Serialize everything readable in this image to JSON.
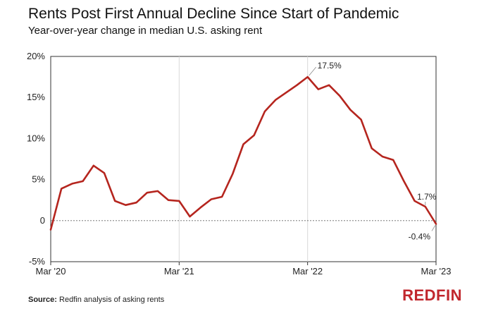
{
  "header": {
    "title": "Rents Post First Annual Decline Since Start of Pandemic",
    "subtitle": "Year-over-year change in median U.S. asking rent"
  },
  "footer": {
    "source_label": "Source:",
    "source_text": " Redfin analysis of asking rents",
    "brand": "REDFIN"
  },
  "colors": {
    "line": "#b5251e",
    "grid": "#d9d9d9",
    "zero_line": "#666666"
  },
  "chart_data": {
    "type": "line",
    "title": "Rents Post First Annual Decline Since Start of Pandemic",
    "subtitle": "Year-over-year change in median U.S. asking rent",
    "xlabel": "",
    "ylabel": "",
    "ylim": [
      -5,
      20
    ],
    "yticks": [
      -5,
      0,
      5,
      10,
      15,
      20
    ],
    "ytick_labels": [
      "-5%",
      "0",
      "5%",
      "10%",
      "15%",
      "20%"
    ],
    "xtick_labels": [
      "Mar '20",
      "Mar '21",
      "Mar '22",
      "Mar '23"
    ],
    "grid": "vertical at x ticks",
    "series": [
      {
        "values": [
          -1.1,
          3.9,
          4.5,
          4.8,
          6.7,
          5.8,
          2.4,
          1.9,
          2.2,
          3.4,
          3.6,
          2.5,
          2.4,
          0.5,
          1.6,
          2.6,
          2.9,
          5.7,
          9.3,
          10.4,
          13.3,
          14.7,
          15.6,
          16.5,
          17.5,
          16.0,
          16.5,
          15.2,
          13.5,
          12.3,
          8.8,
          7.8,
          7.4,
          4.8,
          2.4,
          1.7,
          -0.4
        ]
      }
    ],
    "annotations": [
      {
        "text": "17.5%",
        "value": 17.5
      },
      {
        "text": "1.7%",
        "value": 1.7
      },
      {
        "text": "-0.4%",
        "value": -0.4
      }
    ]
  }
}
